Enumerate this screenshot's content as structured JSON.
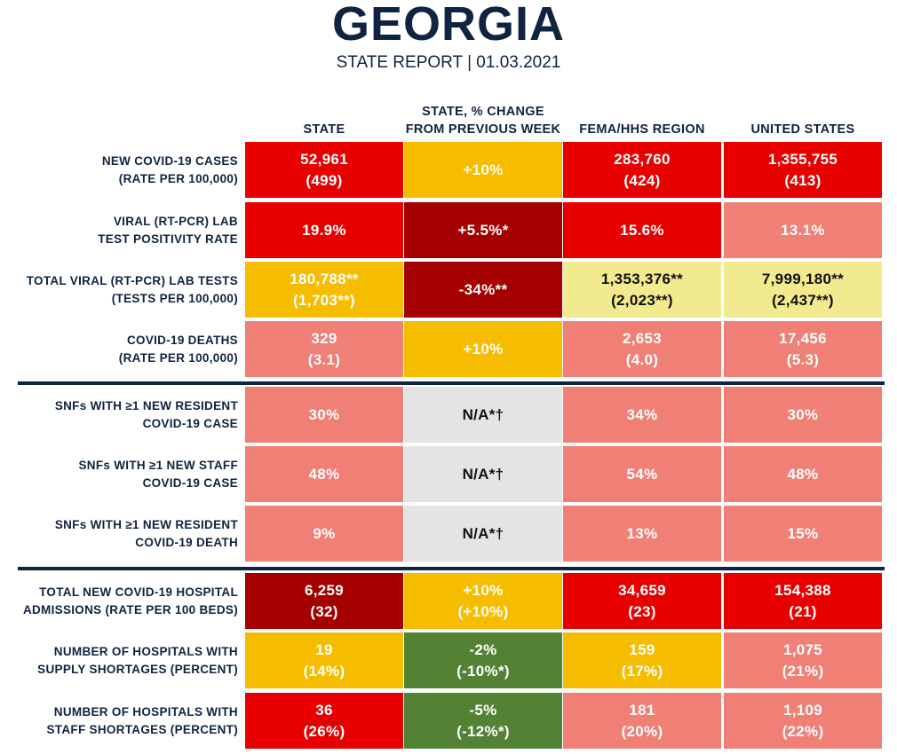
{
  "header": {
    "title": "GEORGIA",
    "subtitle": "STATE REPORT | 01.03.2021"
  },
  "columns": [
    "STATE",
    "STATE, % CHANGE\nFROM PREVIOUS WEEK",
    "FEMA/HHS REGION",
    "UNITED STATES"
  ],
  "palette": {
    "red": "#e80000",
    "dark_red": "#a50000",
    "orange": "#f6bd00",
    "pink": "#f07f76",
    "light_yellow": "#f2ea8e",
    "gray": "#e4e4e4",
    "green": "#548235"
  },
  "rows": [
    {
      "label": "NEW COVID-19 CASES\n(RATE PER 100,000)",
      "cells": [
        {
          "text": "52,961\n(499)",
          "color": "red"
        },
        {
          "text": "+10%",
          "color": "orange"
        },
        {
          "text": "283,760\n(424)",
          "color": "red"
        },
        {
          "text": "1,355,755\n(413)",
          "color": "red"
        }
      ]
    },
    {
      "label": "VIRAL (RT-PCR) LAB\nTEST POSITIVITY RATE",
      "cells": [
        {
          "text": "19.9%",
          "color": "red"
        },
        {
          "text": "+5.5%*",
          "color": "dark_red"
        },
        {
          "text": "15.6%",
          "color": "red"
        },
        {
          "text": "13.1%",
          "color": "pink"
        }
      ]
    },
    {
      "label": "TOTAL VIRAL (RT-PCR) LAB TESTS\n(TESTS PER 100,000)",
      "cells": [
        {
          "text": "180,788**\n(1,703**)",
          "color": "orange"
        },
        {
          "text": "-34%**",
          "color": "dark_red"
        },
        {
          "text": "1,353,376**\n(2,023**)",
          "color": "light_yellow"
        },
        {
          "text": "7,999,180**\n(2,437**)",
          "color": "light_yellow"
        }
      ]
    },
    {
      "label": "COVID-19 DEATHS\n(RATE PER 100,000)",
      "cells": [
        {
          "text": "329\n(3.1)",
          "color": "pink"
        },
        {
          "text": "+10%",
          "color": "orange"
        },
        {
          "text": "2,653\n(4.0)",
          "color": "pink"
        },
        {
          "text": "17,456\n(5.3)",
          "color": "pink"
        }
      ]
    },
    {
      "label": "SNFs WITH ≥1 NEW RESIDENT\nCOVID-19 CASE",
      "cells": [
        {
          "text": "30%",
          "color": "pink"
        },
        {
          "text": "N/A*†",
          "color": "gray"
        },
        {
          "text": "34%",
          "color": "pink"
        },
        {
          "text": "30%",
          "color": "pink"
        }
      ]
    },
    {
      "label": "SNFs WITH ≥1 NEW STAFF\nCOVID-19 CASE",
      "cells": [
        {
          "text": "48%",
          "color": "pink"
        },
        {
          "text": "N/A*†",
          "color": "gray"
        },
        {
          "text": "54%",
          "color": "pink"
        },
        {
          "text": "48%",
          "color": "pink"
        }
      ]
    },
    {
      "label": "SNFs WITH ≥1 NEW RESIDENT\nCOVID-19 DEATH",
      "cells": [
        {
          "text": "9%",
          "color": "pink"
        },
        {
          "text": "N/A*†",
          "color": "gray"
        },
        {
          "text": "13%",
          "color": "pink"
        },
        {
          "text": "15%",
          "color": "pink"
        }
      ]
    },
    {
      "label": "TOTAL NEW COVID-19 HOSPITAL\nADMISSIONS (RATE PER 100 BEDS)",
      "cells": [
        {
          "text": "6,259\n(32)",
          "color": "dark_red"
        },
        {
          "text": "+10%\n(+10%)",
          "color": "orange"
        },
        {
          "text": "34,659\n(23)",
          "color": "red"
        },
        {
          "text": "154,388\n(21)",
          "color": "red"
        }
      ]
    },
    {
      "label": "NUMBER OF HOSPITALS WITH\nSUPPLY SHORTAGES (PERCENT)",
      "cells": [
        {
          "text": "19\n(14%)",
          "color": "orange"
        },
        {
          "text": "-2%\n(-10%*)",
          "color": "green"
        },
        {
          "text": "159\n(17%)",
          "color": "orange"
        },
        {
          "text": "1,075\n(21%)",
          "color": "pink"
        }
      ]
    },
    {
      "label": "NUMBER OF HOSPITALS WITH\nSTAFF SHORTAGES (PERCENT)",
      "cells": [
        {
          "text": "36\n(26%)",
          "color": "red"
        },
        {
          "text": "-5%\n(-12%*)",
          "color": "green"
        },
        {
          "text": "181\n(20%)",
          "color": "pink"
        },
        {
          "text": "1,109\n(22%)",
          "color": "pink"
        }
      ]
    }
  ]
}
